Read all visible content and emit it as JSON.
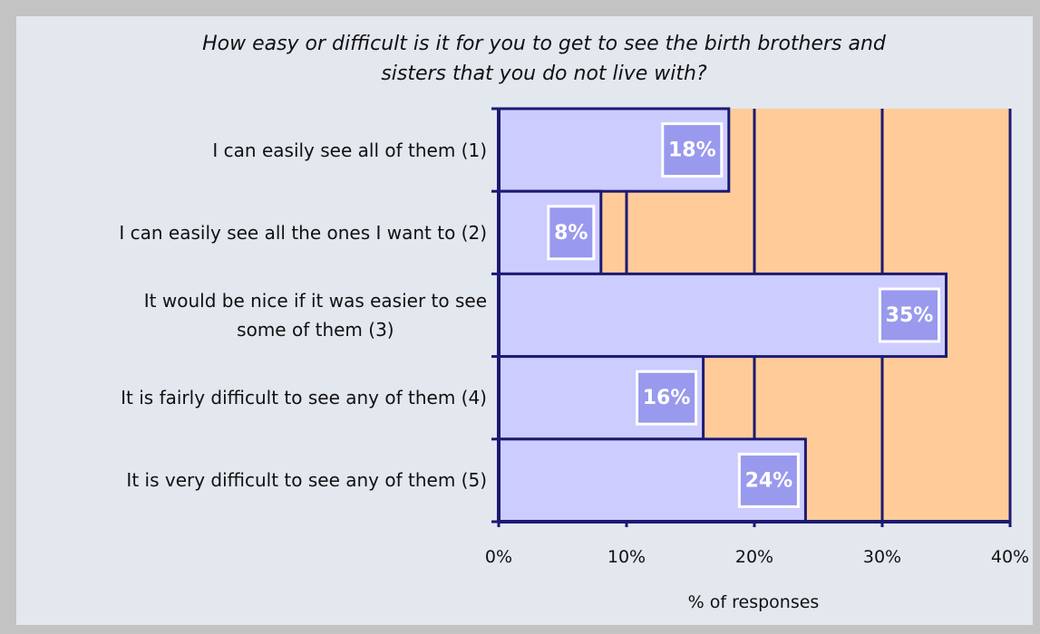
{
  "chart_data": {
    "type": "bar",
    "orientation": "horizontal",
    "title": "How easy or difficult is it for you to get to see the birth brothers and\nsisters that you do not live with?",
    "categories": [
      "I can easily see all of them (1)",
      "I can easily see all the ones I want to (2)",
      "It would be nice if it was easier to see\nsome of them (3)",
      "It is fairly difficult to see any of them (4)",
      "It is very difficult to see any of them (5)"
    ],
    "values": [
      18,
      8,
      35,
      16,
      24
    ],
    "value_labels": [
      "18%",
      "8%",
      "35%",
      "16%",
      "24%"
    ],
    "color": "#ccccff",
    "plot_background": "#ffcc99",
    "xlabel": "% of responses",
    "xlim": [
      0,
      40
    ],
    "xticks": [
      {
        "value": 0,
        "label": "0%"
      },
      {
        "value": 10,
        "label": "10%"
      },
      {
        "value": 20,
        "label": "20%"
      },
      {
        "value": 30,
        "label": "30%"
      },
      {
        "value": 40,
        "label": "40%"
      }
    ],
    "grid": true
  }
}
